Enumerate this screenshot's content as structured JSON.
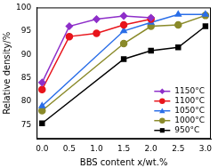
{
  "chart_data": {
    "type": "line",
    "x_label": "BBS content x/wt.%",
    "y_label": "Relative density/%",
    "xlim": [
      -0.1,
      3.1
    ],
    "xticks": [
      {
        "value": 0,
        "label": "0.0"
      },
      {
        "value": 0.5,
        "label": "0.5"
      },
      {
        "value": 1,
        "label": "1.0"
      },
      {
        "value": 1.5,
        "label": "1.5"
      },
      {
        "value": 2,
        "label": "2.0"
      },
      {
        "value": 2.5,
        "label": "2.5"
      },
      {
        "value": 3,
        "label": "3.0"
      }
    ],
    "ylim": [
      72,
      100
    ],
    "yticks": [
      75,
      80,
      85,
      90,
      95,
      100
    ],
    "grid": false,
    "legend": "lower right",
    "series": [
      {
        "name": "1150°C",
        "color": "#8e2fc9",
        "marker": "diamond",
        "line_style": "solid",
        "x": [
          0,
          0.5,
          1,
          1.5,
          2
        ],
        "values": [
          84,
          96,
          97.5,
          98.2,
          97.8
        ]
      },
      {
        "name": "1100°C",
        "color": "#e8141b",
        "marker": "circle",
        "line_style": "solid",
        "x": [
          0,
          0.5,
          1,
          1.5,
          2
        ],
        "values": [
          82.5,
          93.8,
          94.5,
          96.3,
          97.5
        ]
      },
      {
        "name": "1050°C",
        "color": "#2a6ee8",
        "marker": "triangle",
        "line_style": "solid",
        "x": [
          0,
          1.5,
          2,
          2.5,
          3
        ],
        "values": [
          79,
          95,
          96.8,
          98.5,
          98.5
        ]
      },
      {
        "name": "1000°C",
        "color": "#8a8a2a",
        "marker": "circle",
        "line_style": "solid",
        "x": [
          0,
          1.5,
          2,
          2.5,
          3
        ],
        "values": [
          78,
          92.3,
          96,
          96.3,
          98.3
        ]
      },
      {
        "name": "950°C",
        "color": "#000000",
        "marker": "square",
        "line_style": "solid",
        "x": [
          0,
          1.5,
          2,
          2.5,
          3
        ],
        "values": [
          75.3,
          89,
          90.8,
          91.5,
          96
        ]
      }
    ]
  }
}
